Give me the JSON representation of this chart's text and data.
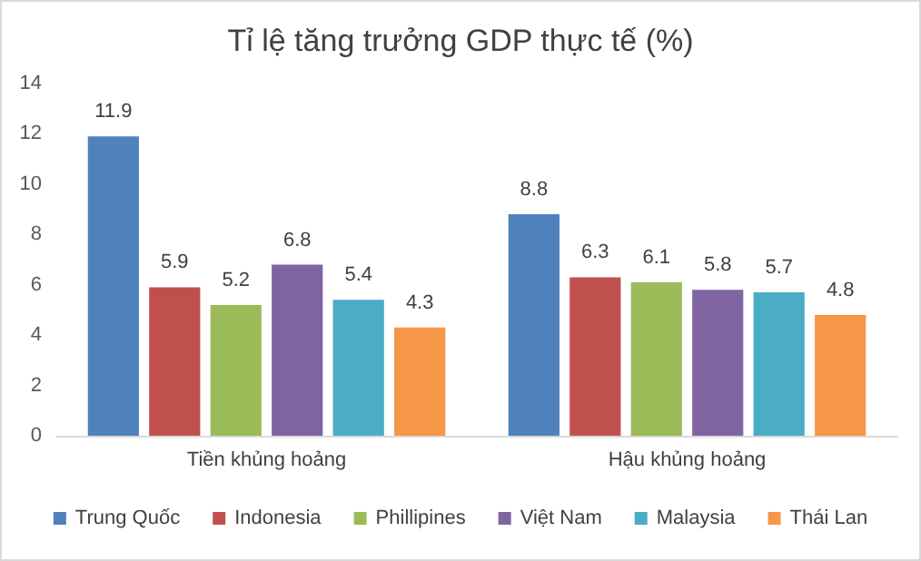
{
  "chart_data": {
    "type": "bar",
    "title": "Tỉ lệ tăng trưởng GDP thực tế (%)",
    "categories": [
      "Tiền khủng hoảng",
      "Hậu khủng hoảng"
    ],
    "series": [
      {
        "name": "Trung Quốc",
        "color": "#4f81bd",
        "values": [
          11.9,
          8.8
        ]
      },
      {
        "name": "Indonesia",
        "color": "#c0504d",
        "values": [
          5.9,
          6.3
        ]
      },
      {
        "name": "Phillipines",
        "color": "#9bbb59",
        "values": [
          5.2,
          6.1
        ]
      },
      {
        "name": "Việt Nam",
        "color": "#8064a2",
        "values": [
          6.8,
          5.8
        ]
      },
      {
        "name": "Malaysia",
        "color": "#4bacc6",
        "values": [
          5.4,
          5.7
        ]
      },
      {
        "name": "Thái Lan",
        "color": "#f79646",
        "values": [
          4.3,
          4.8
        ]
      }
    ],
    "ylim": [
      0,
      14
    ],
    "yticks": [
      0,
      2,
      4,
      6,
      8,
      10,
      12,
      14
    ],
    "grid": false,
    "legend": "bottom",
    "data_labels": true
  }
}
